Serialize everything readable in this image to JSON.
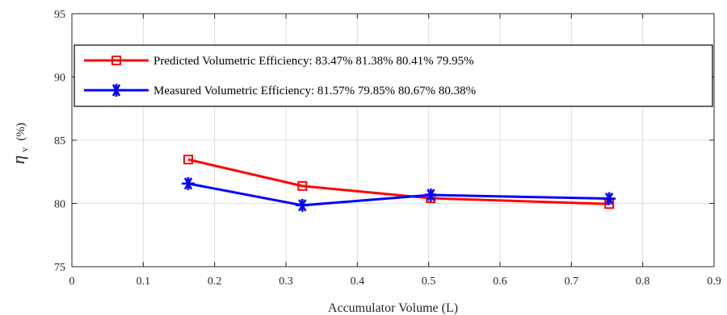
{
  "chart_data": {
    "type": "line",
    "xlabel": "Accumulator Volume (L)",
    "ylabel_symbol": "η",
    "ylabel_subscript": "v",
    "ylabel_unit": "(%)",
    "xlim": [
      0,
      0.9
    ],
    "ylim": [
      75,
      95
    ],
    "xticks": [
      0,
      0.1,
      0.2,
      0.3,
      0.4,
      0.5,
      0.6,
      0.7,
      0.8,
      0.9
    ],
    "yticks": [
      75,
      80,
      85,
      90,
      95
    ],
    "grid": true,
    "legend_placement": "top",
    "series": [
      {
        "name": "Predicted Volumetric Efficiency: 83.47% 81.38% 80.41% 79.95%",
        "color": "#ff0000",
        "marker": "square",
        "x": [
          0.163,
          0.323,
          0.503,
          0.753
        ],
        "y": [
          83.47,
          81.38,
          80.41,
          79.95
        ]
      },
      {
        "name": "Measured Volumetric Efficiency: 81.57% 79.85% 80.67% 80.38%",
        "color": "#0000ff",
        "marker": "asterisk",
        "x": [
          0.163,
          0.323,
          0.503,
          0.753
        ],
        "y": [
          81.57,
          79.85,
          80.67,
          80.38
        ]
      }
    ]
  }
}
